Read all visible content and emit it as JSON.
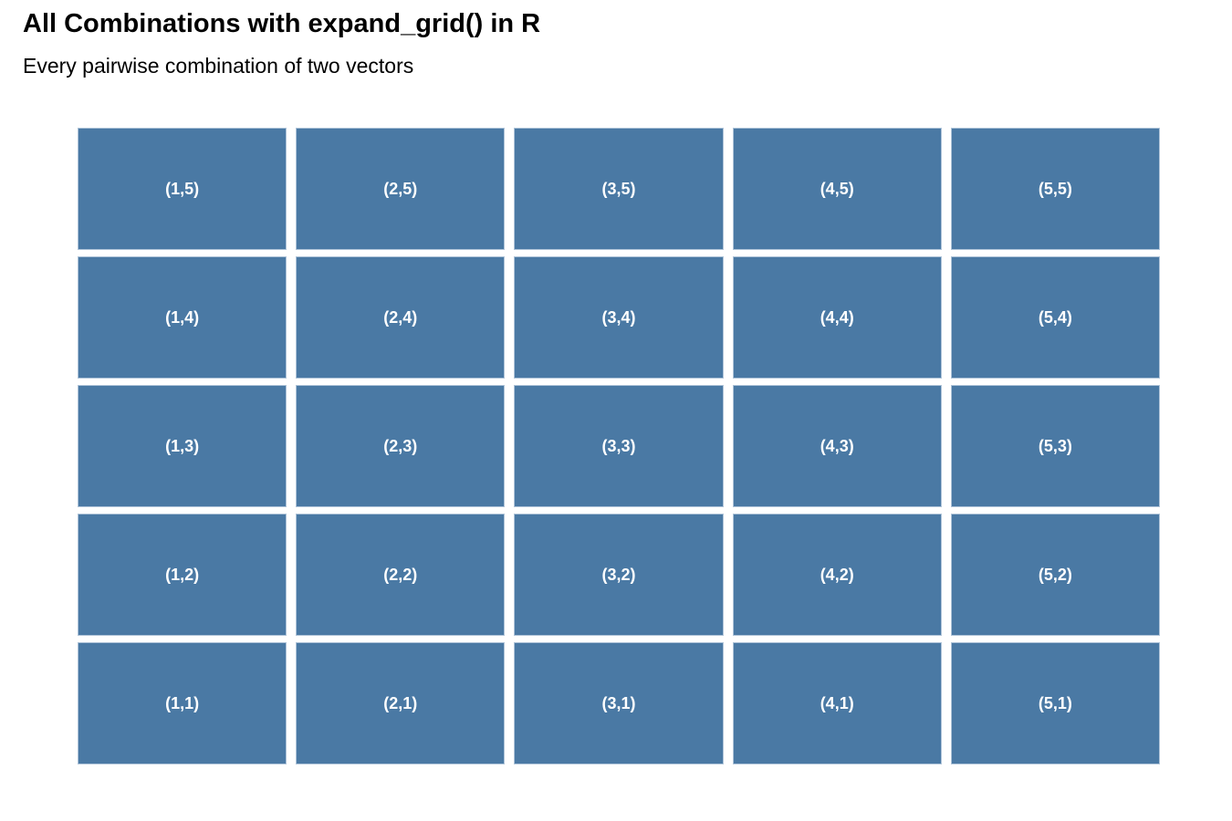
{
  "header": {
    "title": "All Combinations with expand_grid() in R",
    "subtitle": "Every pairwise combination of two vectors"
  },
  "colors": {
    "background": "#FFFFFF",
    "tile_fill": "#4A79A4",
    "tile_border": "#AEC3D8",
    "tile_label": "#FFFFFF",
    "title_text": "#000000",
    "subtitle_text": "#000000"
  },
  "chart_data": {
    "type": "heatmap",
    "title": "All Combinations with expand_grid() in R",
    "subtitle": "Every pairwise combination of two vectors",
    "xlabel": "",
    "ylabel": "",
    "x_values": [
      1,
      2,
      3,
      4,
      5
    ],
    "y_values": [
      1,
      2,
      3,
      4,
      5
    ],
    "grid": "off",
    "legend": "none",
    "axes_visible": false,
    "tile_fill": "#4A79A4",
    "label_color": "#FFFFFF",
    "rows_top_to_bottom": [
      {
        "y": 5,
        "labels": [
          "(1,5)",
          "(2,5)",
          "(3,5)",
          "(4,5)",
          "(5,5)"
        ]
      },
      {
        "y": 4,
        "labels": [
          "(1,4)",
          "(2,4)",
          "(3,4)",
          "(4,4)",
          "(5,4)"
        ]
      },
      {
        "y": 3,
        "labels": [
          "(1,3)",
          "(2,3)",
          "(3,3)",
          "(4,3)",
          "(5,3)"
        ]
      },
      {
        "y": 2,
        "labels": [
          "(1,2)",
          "(2,2)",
          "(3,2)",
          "(4,2)",
          "(5,2)"
        ]
      },
      {
        "y": 1,
        "labels": [
          "(1,1)",
          "(2,1)",
          "(3,1)",
          "(4,1)",
          "(5,1)"
        ]
      }
    ]
  }
}
